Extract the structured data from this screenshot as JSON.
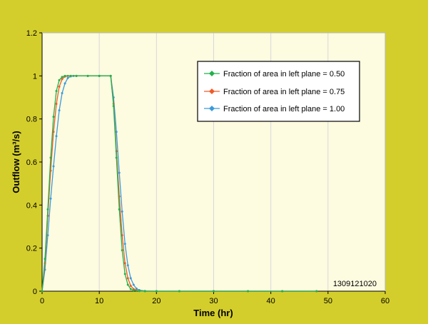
{
  "chart_data": {
    "type": "line",
    "title": "",
    "xlabel": "Time (hr)",
    "ylabel": "Outflow (m³/s)",
    "xlim": [
      0,
      60
    ],
    "ylim": [
      0,
      1.2
    ],
    "xticks": [
      "0",
      "10",
      "20",
      "30",
      "40",
      "50",
      "60"
    ],
    "yticks": [
      "0",
      "0.2",
      "0.4",
      "0.6",
      "0.8",
      "1",
      "1.2"
    ],
    "grid": "vertical",
    "legend_position": "top-right",
    "annotation": "1309121020",
    "colors": {
      "background": "#d4ce2c",
      "plot_area": "#fdfbe0",
      "grid": "#d8d8d8"
    },
    "series": [
      {
        "name": "Fraction of area in left plane = 0.50",
        "color": "#22b14c",
        "x": [
          0,
          0.5,
          1,
          1.5,
          2,
          2.5,
          3,
          3.5,
          4,
          5,
          6,
          8,
          10,
          12,
          12.5,
          13,
          13.5,
          14,
          14.5,
          15,
          15.5,
          16,
          17,
          18,
          20,
          24,
          30,
          36,
          42,
          48
        ],
        "y": [
          0,
          0.15,
          0.38,
          0.62,
          0.81,
          0.93,
          0.98,
          0.995,
          1,
          1,
          1,
          1,
          1,
          1,
          0.86,
          0.62,
          0.38,
          0.19,
          0.08,
          0.03,
          0.01,
          0.004,
          0.001,
          0,
          0,
          0,
          0,
          0,
          0,
          0
        ]
      },
      {
        "name": "Fraction of area in left plane = 0.75",
        "color": "#f05a28",
        "x": [
          0,
          0.5,
          1,
          1.5,
          2,
          2.5,
          3,
          3.5,
          4,
          4.5,
          5,
          6,
          8,
          10,
          12,
          12.5,
          13,
          13.5,
          14,
          14.5,
          15,
          15.5,
          16,
          16.5,
          17,
          18,
          20,
          24,
          30,
          36,
          42,
          48
        ],
        "y": [
          0,
          0.13,
          0.35,
          0.56,
          0.74,
          0.87,
          0.95,
          0.985,
          0.997,
          1,
          1,
          1,
          1,
          1,
          1,
          0.87,
          0.65,
          0.44,
          0.26,
          0.13,
          0.06,
          0.025,
          0.01,
          0.004,
          0.001,
          0,
          0,
          0,
          0,
          0,
          0,
          0
        ]
      },
      {
        "name": "Fraction of area in left plane = 1.00",
        "color": "#3a9bdc",
        "x": [
          0,
          0.5,
          1,
          1.5,
          2,
          2.5,
          3,
          3.5,
          4,
          4.5,
          5,
          5.5,
          6,
          8,
          10,
          12,
          12.5,
          13,
          13.5,
          14,
          14.5,
          15,
          15.5,
          16,
          16.5,
          17,
          18,
          20,
          24,
          30,
          36,
          42,
          48
        ],
        "y": [
          0,
          0.1,
          0.26,
          0.43,
          0.58,
          0.72,
          0.84,
          0.92,
          0.965,
          0.99,
          0.998,
          1,
          1,
          1,
          1,
          1,
          0.9,
          0.74,
          0.55,
          0.37,
          0.22,
          0.12,
          0.06,
          0.03,
          0.012,
          0.005,
          0.001,
          0,
          0,
          0,
          0,
          0,
          0
        ]
      }
    ]
  }
}
